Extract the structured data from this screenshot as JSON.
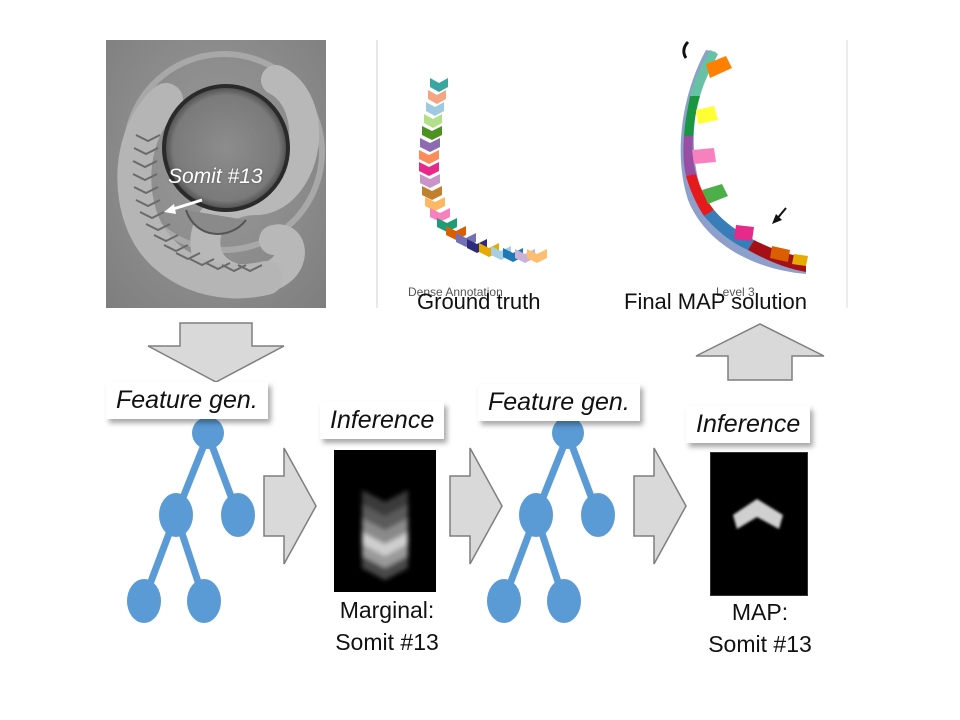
{
  "photo": {
    "somit_label": "Somit #13"
  },
  "results": {
    "dense_annotation_label": "Dense Annotation",
    "level_label": "Level 3",
    "ground_truth_caption": "Ground truth",
    "final_map_caption": "Final MAP solution"
  },
  "pipeline": {
    "feature_gen_1": "Feature gen.",
    "inference_1": "Inference",
    "feature_gen_2": "Feature gen.",
    "inference_2": "Inference",
    "marginal_caption_line1": "Marginal:",
    "marginal_caption_line2": "Somit #13",
    "map_caption_line1": "MAP:",
    "map_caption_line2": "Somit #13"
  },
  "colors": {
    "tree_node": "#5b9bd5",
    "arrow_fill": "#d9d9d9",
    "arrow_stroke": "#7f7f7f"
  }
}
